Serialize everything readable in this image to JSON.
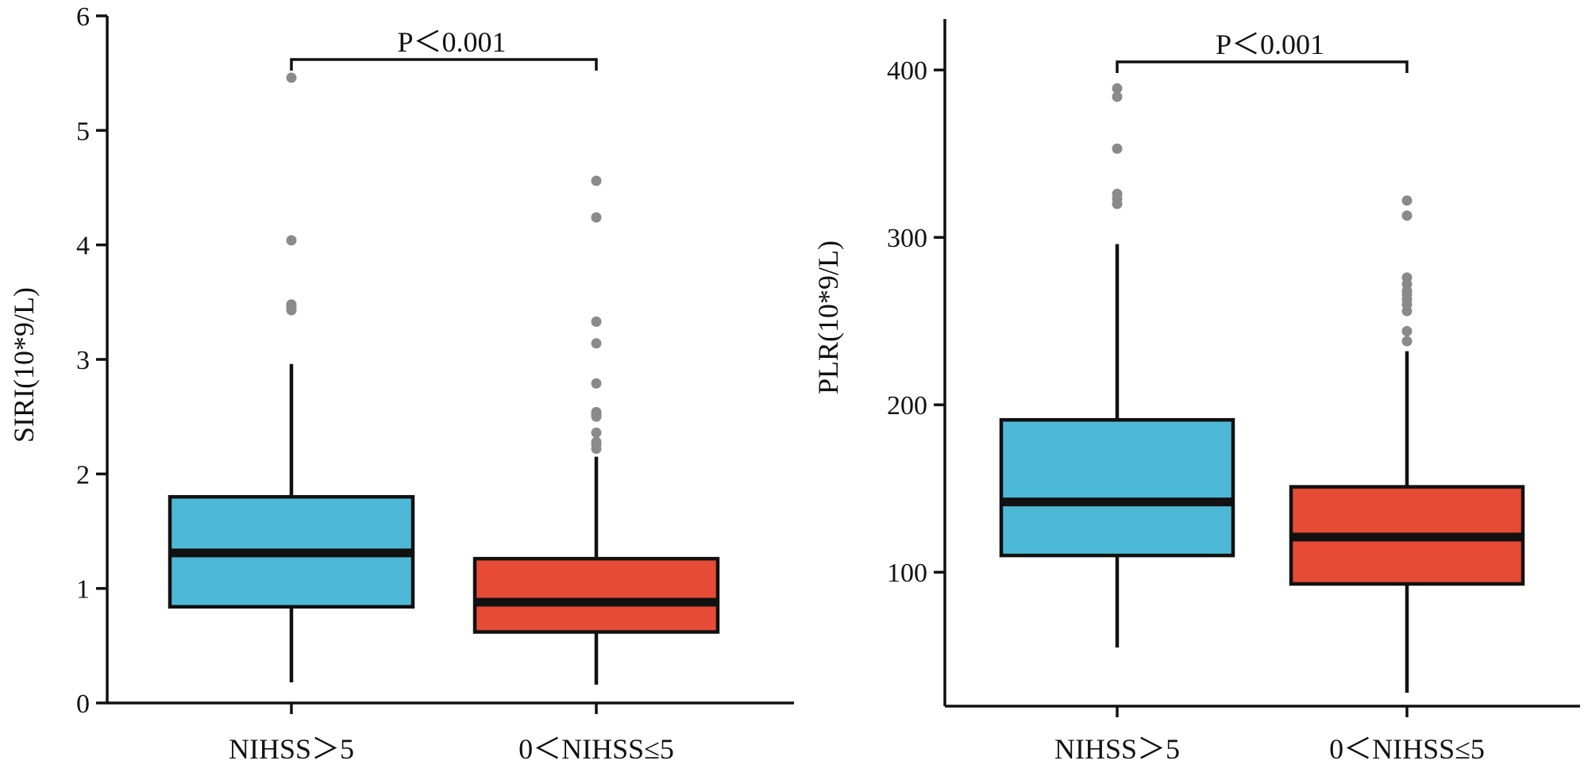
{
  "chart_data": [
    {
      "type": "boxplot",
      "title": "",
      "xlabel": "",
      "ylabel": "SIRI(10*9/L)",
      "ylim": [
        0,
        6
      ],
      "yticks": [
        0,
        1,
        2,
        3,
        4,
        5,
        6
      ],
      "annotation": "P＜0.001",
      "groups": [
        {
          "name": "NIHSS＞5",
          "color": "#4EB9D6",
          "whisker_low": 0.18,
          "q1": 0.84,
          "median": 1.31,
          "q3": 1.8,
          "whisker_high": 2.96,
          "outliers": [
            3.43,
            3.46,
            3.48,
            4.04,
            5.46
          ]
        },
        {
          "name": "0＜NIHSS≤5",
          "color": "#E54B35",
          "whisker_low": 0.16,
          "q1": 0.62,
          "median": 0.88,
          "q3": 1.26,
          "whisker_high": 2.15,
          "outliers": [
            2.22,
            2.26,
            2.28,
            2.36,
            2.5,
            2.52,
            2.54,
            2.79,
            3.14,
            3.33,
            4.24,
            4.56
          ]
        }
      ]
    },
    {
      "type": "boxplot",
      "title": "",
      "xlabel": "",
      "ylabel": "PLR(10*9/L)",
      "ylim": [
        20,
        425
      ],
      "yticks": [
        100,
        200,
        300,
        400
      ],
      "annotation": "P＜0.001",
      "groups": [
        {
          "name": "NIHSS＞5",
          "color": "#4EB9D6",
          "whisker_low": 55,
          "q1": 110,
          "median": 142,
          "q3": 191,
          "whisker_high": 296,
          "outliers": [
            320,
            323,
            326,
            353,
            384,
            389
          ]
        },
        {
          "name": "0＜NIHSS≤5",
          "color": "#E54B35",
          "whisker_low": 28,
          "q1": 93,
          "median": 121,
          "q3": 151,
          "whisker_high": 232,
          "outliers": [
            238,
            244,
            256,
            260,
            263,
            266,
            268,
            272,
            276,
            313,
            322
          ]
        }
      ]
    }
  ]
}
